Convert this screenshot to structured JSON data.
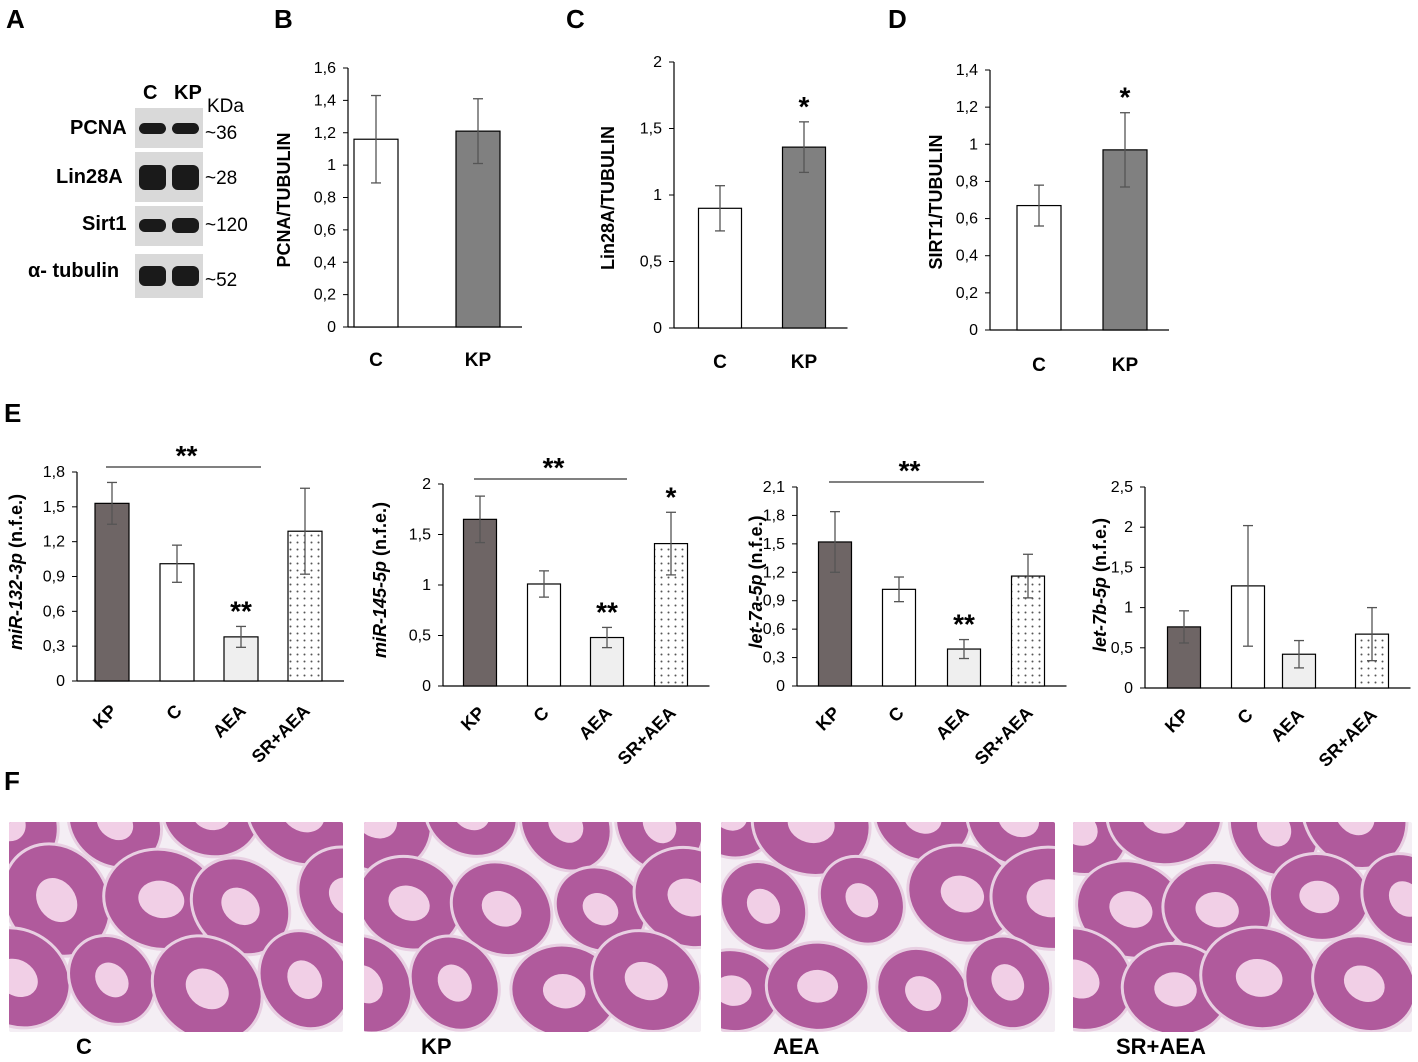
{
  "panel_letters": [
    "A",
    "B",
    "C",
    "D",
    "E",
    "F"
  ],
  "western_blot": {
    "lanes": [
      "C",
      "KP"
    ],
    "unit": "KDa",
    "proteins": [
      {
        "name": "PCNA",
        "mw": "~36"
      },
      {
        "name": "Lin28A",
        "mw": "~28"
      },
      {
        "name": "Sirt1",
        "mw": "~120"
      },
      {
        "name": "α- tubulin",
        "mw": "~52"
      }
    ]
  },
  "chart_data": [
    {
      "id": "B",
      "type": "bar",
      "ylabel": "PCNA/TUBULIN",
      "categories": [
        "C",
        "KP"
      ],
      "values": [
        1.16,
        1.21
      ],
      "errors": [
        0.27,
        0.2
      ],
      "fills": [
        "#ffffff",
        "#808080"
      ],
      "ylim": [
        0,
        1.6
      ],
      "yticks": [
        "0",
        "0,2",
        "0,4",
        "0,6",
        "0,8",
        "1",
        "1,2",
        "1,4",
        "1,6"
      ],
      "significance": [
        "",
        ""
      ],
      "bracket": null
    },
    {
      "id": "C",
      "type": "bar",
      "ylabel": "Lin28A/TUBULIN",
      "categories": [
        "C",
        "KP"
      ],
      "values": [
        0.9,
        1.36
      ],
      "errors": [
        0.17,
        0.19
      ],
      "fills": [
        "#ffffff",
        "#808080"
      ],
      "ylim": [
        0,
        2
      ],
      "yticks": [
        "0",
        "0,5",
        "1",
        "1,5",
        "2"
      ],
      "significance": [
        "",
        "*"
      ],
      "bracket": null
    },
    {
      "id": "D",
      "type": "bar",
      "ylabel": "SIRT1/TUBULIN",
      "categories": [
        "C",
        "KP"
      ],
      "values": [
        0.67,
        0.97
      ],
      "errors": [
        0.11,
        0.2
      ],
      "fills": [
        "#ffffff",
        "#808080"
      ],
      "ylim": [
        0,
        1.4
      ],
      "yticks": [
        "0",
        "0,2",
        "0,4",
        "0,6",
        "0,8",
        "1",
        "1,2",
        "1,4"
      ],
      "significance": [
        "",
        "*"
      ],
      "bracket": null
    },
    {
      "id": "E1",
      "type": "bar",
      "ylabel_italic": "miR-132-3p",
      "ylabel_suffix": " (n.f.e.)",
      "categories": [
        "KP",
        "C",
        "AEA",
        "SR+AEA"
      ],
      "values": [
        1.53,
        1.01,
        0.38,
        1.29
      ],
      "errors": [
        0.18,
        0.16,
        0.09,
        0.37
      ],
      "fills": [
        "#6e6565",
        "#ffffff",
        "#efefef",
        "dots"
      ],
      "ylim": [
        0,
        1.8
      ],
      "yticks": [
        "0",
        "0,3",
        "0,6",
        "0,9",
        "1,2",
        "1,5",
        "1,8"
      ],
      "significance": [
        "",
        "",
        "**",
        ""
      ],
      "bracket": {
        "from": 0,
        "to": 2,
        "label": "**"
      }
    },
    {
      "id": "E2",
      "type": "bar",
      "ylabel_italic": "miR-145-5p",
      "ylabel_suffix": " (n.f.e.)",
      "categories": [
        "KP",
        "C",
        "AEA",
        "SR+AEA"
      ],
      "values": [
        1.65,
        1.01,
        0.48,
        1.41
      ],
      "errors": [
        0.23,
        0.13,
        0.1,
        0.31
      ],
      "fills": [
        "#6e6565",
        "#ffffff",
        "#efefef",
        "dots"
      ],
      "ylim": [
        0,
        2
      ],
      "yticks": [
        "0",
        "0,5",
        "1",
        "1,5",
        "2"
      ],
      "significance": [
        "",
        "",
        "**",
        "*"
      ],
      "bracket": {
        "from": 0,
        "to": 2,
        "label": "**"
      }
    },
    {
      "id": "E3",
      "type": "bar",
      "ylabel_italic": "let-7a-5p",
      "ylabel_suffix": " (n.f.e.)",
      "categories": [
        "KP",
        "C",
        "AEA",
        "SR+AEA"
      ],
      "values": [
        1.52,
        1.02,
        0.39,
        1.16
      ],
      "errors": [
        0.32,
        0.13,
        0.1,
        0.23
      ],
      "fills": [
        "#6e6565",
        "#ffffff",
        "#efefef",
        "dots"
      ],
      "ylim": [
        0,
        2.1
      ],
      "yticks": [
        "0",
        "0,3",
        "0,6",
        "0,9",
        "1,2",
        "1,5",
        "1,8",
        "2,1"
      ],
      "significance": [
        "",
        "",
        "**",
        ""
      ],
      "bracket": {
        "from": 0,
        "to": 2,
        "label": "**"
      }
    },
    {
      "id": "E4",
      "type": "bar",
      "ylabel_italic": "let-7b-5p",
      "ylabel_suffix": " (n.f.e.)",
      "categories": [
        "KP",
        "C",
        "AEA",
        "SR+AEA"
      ],
      "values": [
        0.76,
        1.27,
        0.42,
        0.67
      ],
      "errors": [
        0.2,
        0.75,
        0.17,
        0.33
      ],
      "fills": [
        "#6e6565",
        "#ffffff",
        "#efefef",
        "dots"
      ],
      "ylim": [
        0,
        2.5
      ],
      "yticks": [
        "0",
        "0,5",
        "1",
        "1,5",
        "2",
        "2,5"
      ],
      "significance": [
        "",
        "",
        "",
        ""
      ],
      "bracket": null
    }
  ],
  "histology": {
    "labels": [
      "C",
      "KP",
      "AEA",
      "SR+AEA"
    ],
    "colors": {
      "tissue": "#b05a9c",
      "lumen": "#f1cfe6",
      "background": "#f4eef4"
    }
  }
}
